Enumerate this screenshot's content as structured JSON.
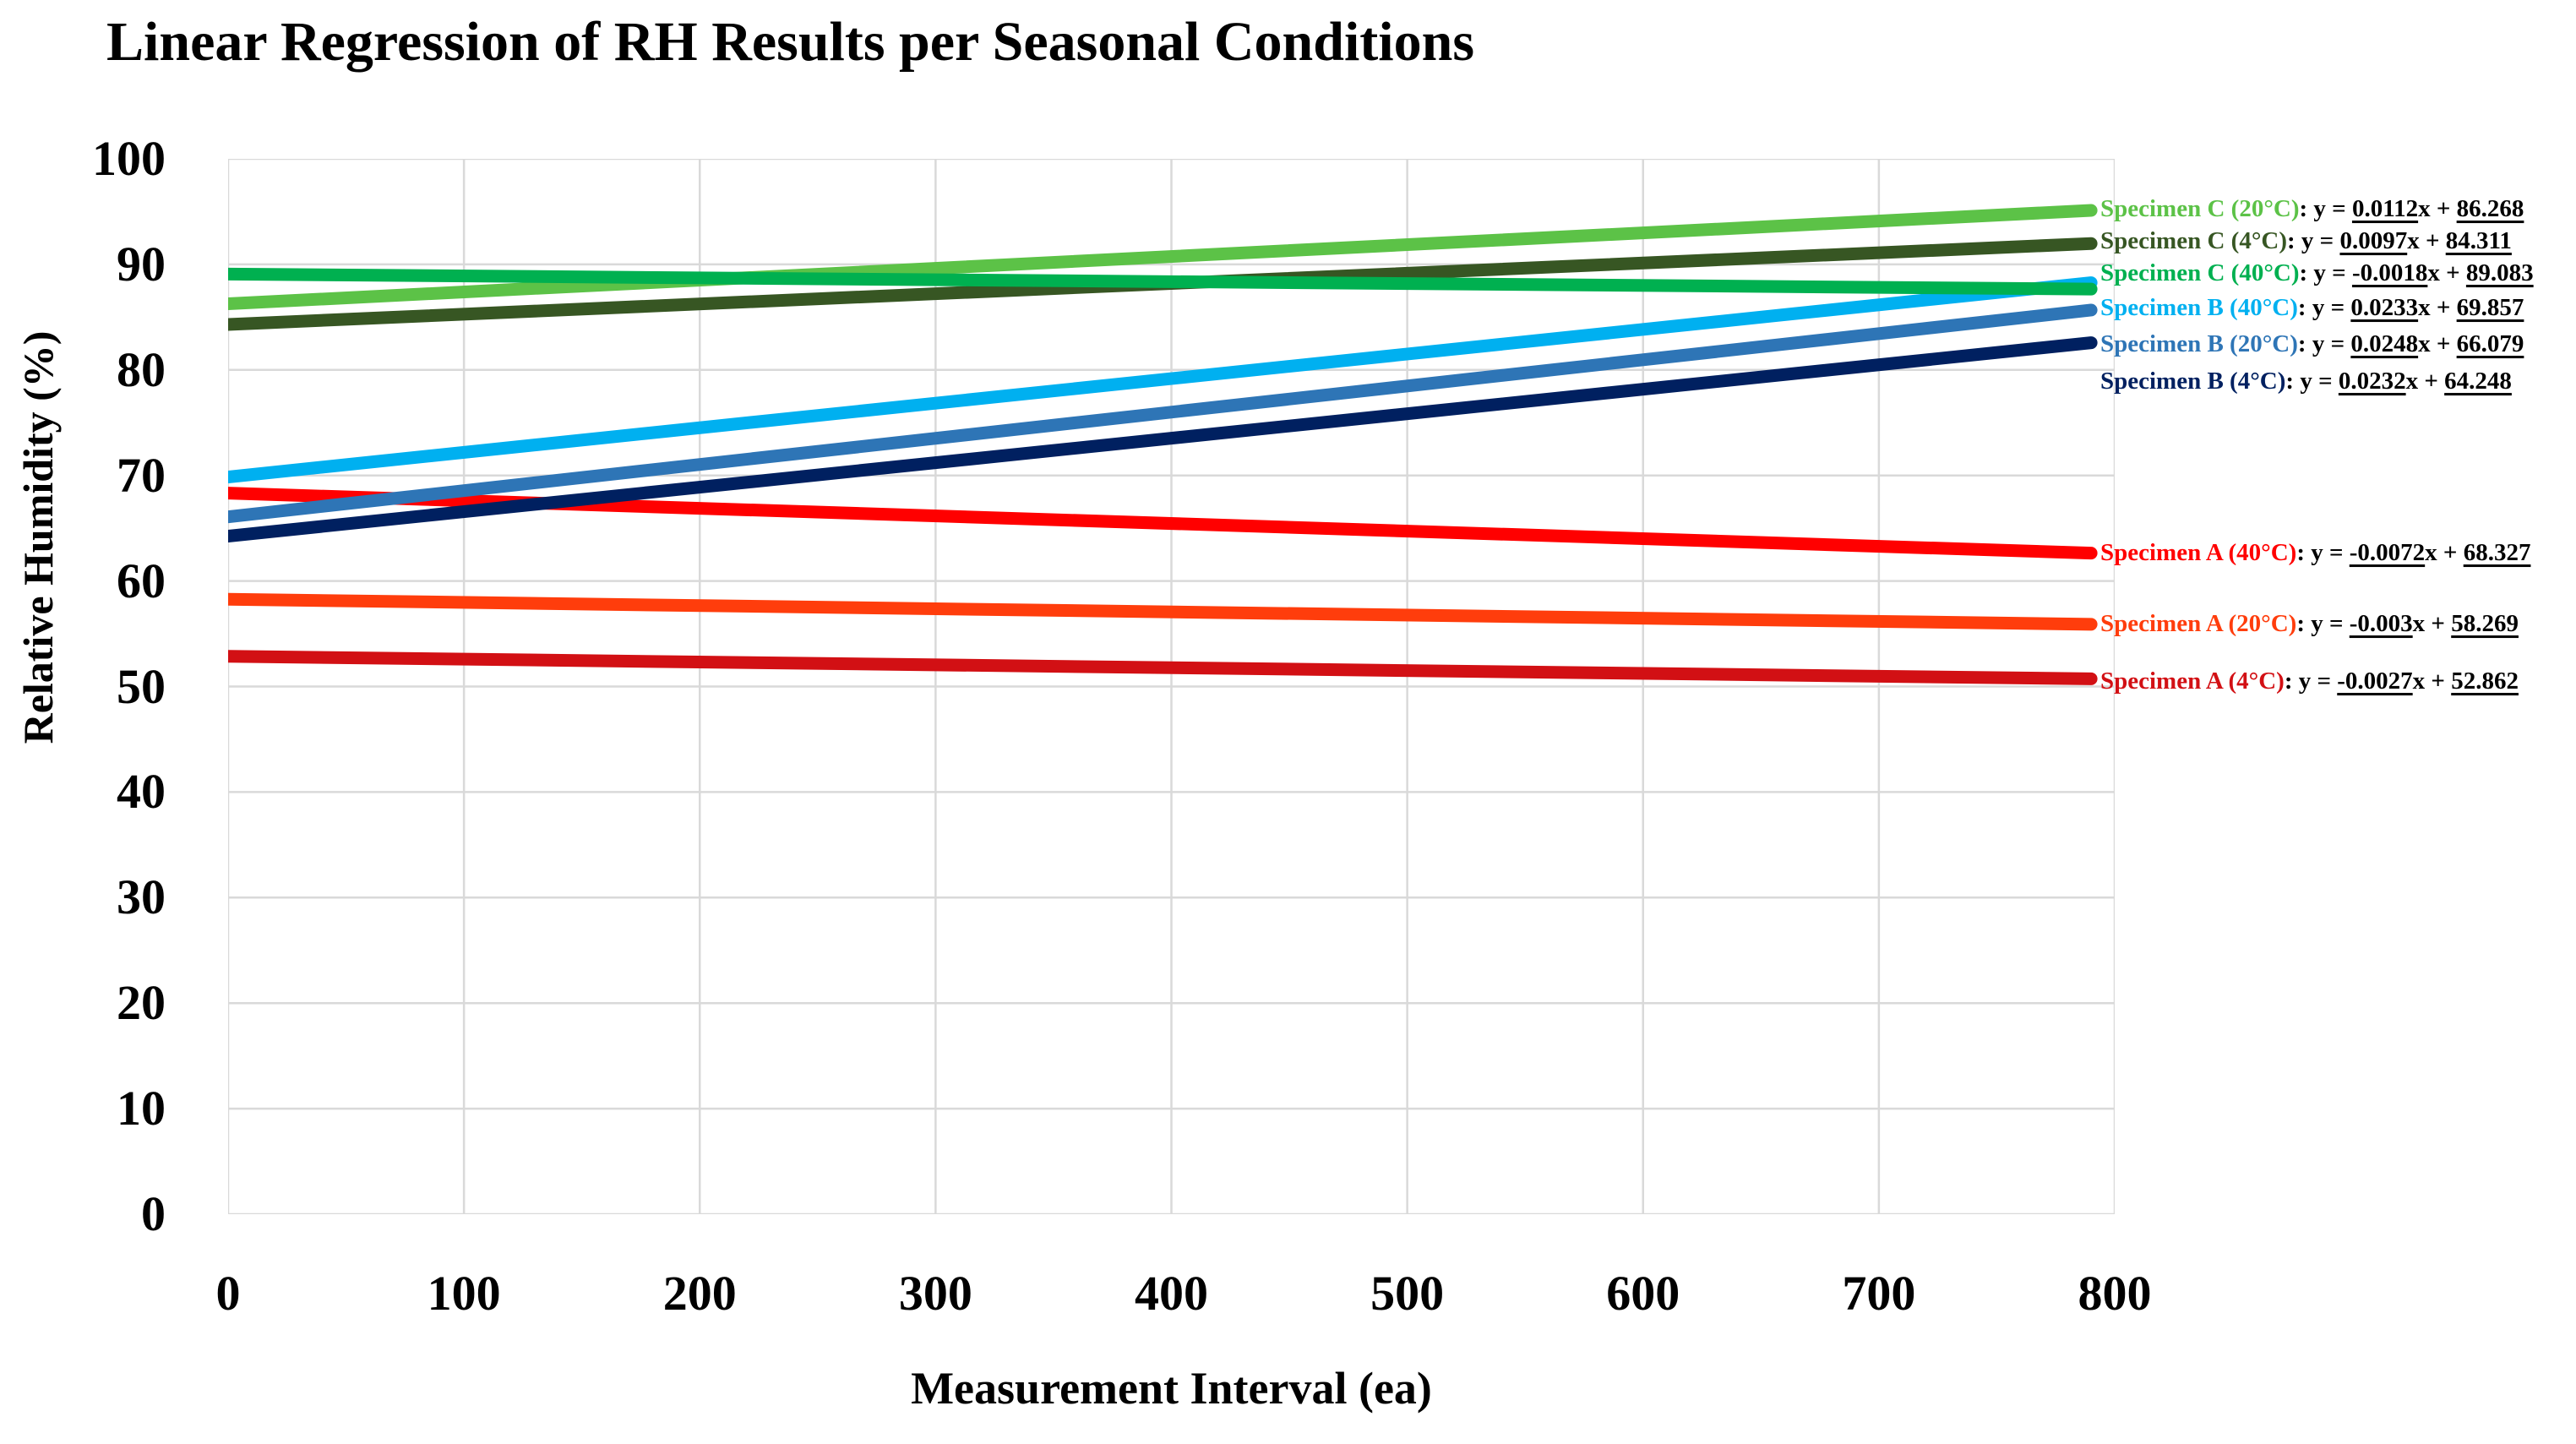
{
  "title": "Linear Regression of RH Results per Seasonal Conditions",
  "axes": {
    "x_label": "Measurement Interval (ea)",
    "y_label": "Relative Humidity (%)",
    "x_tick_labels": [
      "0",
      "100",
      "200",
      "300",
      "400",
      "500",
      "600",
      "700",
      "800"
    ],
    "y_tick_labels": [
      "0",
      "10",
      "20",
      "30",
      "40",
      "50",
      "60",
      "70",
      "80",
      "90",
      "100"
    ]
  },
  "legend_format": {
    "separator": ": y = ",
    "x_plus": "x + "
  },
  "colors": {
    "background": "#FFFFFF",
    "text": "#000000",
    "gridline": "#D9D9D9"
  },
  "chart_data": {
    "type": "line",
    "title": "Linear Regression of RH Results per Seasonal Conditions",
    "xlabel": "Measurement Interval (ea)",
    "ylabel": "Relative Humidity (%)",
    "xlim": [
      0,
      800
    ],
    "ylim": [
      0,
      100
    ],
    "x_tick_step": 100,
    "y_tick_step": 10,
    "grid": true,
    "legend_position": "right",
    "line_x_range": [
      0,
      790
    ],
    "series": [
      {
        "name": "Specimen C (20°C)",
        "color": "#5CC247",
        "slope": 0.0112,
        "intercept": 86.268,
        "slope_label": "0.0112",
        "intercept_label": "86.268"
      },
      {
        "name": "Specimen C (4°C)",
        "color": "#375623",
        "slope": 0.0097,
        "intercept": 84.311,
        "slope_label": "0.0097",
        "intercept_label": "84.311"
      },
      {
        "name": "Specimen C (40°C)",
        "color": "#00B050",
        "slope": -0.0018,
        "intercept": 89.083,
        "slope_label": "-0.0018",
        "intercept_label": "89.083"
      },
      {
        "name": "Specimen B (40°C)",
        "color": "#00B0F0",
        "slope": 0.0233,
        "intercept": 69.857,
        "slope_label": "0.0233",
        "intercept_label": "69.857"
      },
      {
        "name": "Specimen B (20°C)",
        "color": "#2E75B6",
        "slope": 0.0248,
        "intercept": 66.079,
        "slope_label": "0.0248",
        "intercept_label": "66.079"
      },
      {
        "name": "Specimen B (4°C)",
        "color": "#002060",
        "slope": 0.0232,
        "intercept": 64.248,
        "slope_label": "0.0232",
        "intercept_label": "64.248"
      },
      {
        "name": "Specimen A (40°C)",
        "color": "#FF0000",
        "slope": -0.0072,
        "intercept": 68.327,
        "slope_label": "-0.0072",
        "intercept_label": "68.327"
      },
      {
        "name": "Specimen A (20°C)",
        "color": "#FF3D0C",
        "slope": -0.003,
        "intercept": 58.269,
        "slope_label": "-0.003",
        "intercept_label": "58.269"
      },
      {
        "name": "Specimen A (4°C)",
        "color": "#D21014",
        "slope": -0.0027,
        "intercept": 52.862,
        "slope_label": "-0.0027",
        "intercept_label": "52.862"
      }
    ]
  }
}
